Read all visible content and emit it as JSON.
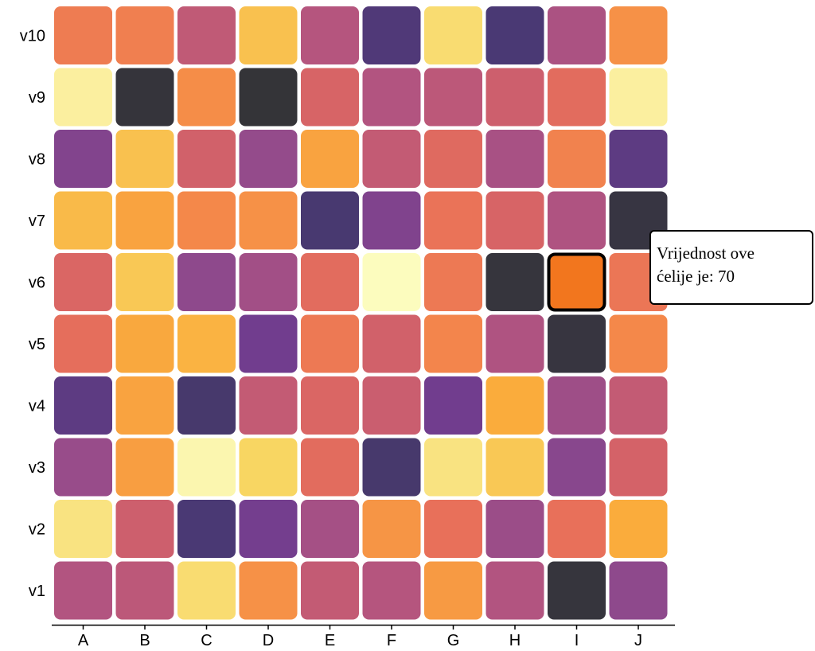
{
  "chart_data": {
    "type": "heatmap",
    "x_categories": [
      "A",
      "B",
      "C",
      "D",
      "E",
      "F",
      "G",
      "H",
      "I",
      "J"
    ],
    "y_categories": [
      "v1",
      "v2",
      "v3",
      "v4",
      "v5",
      "v6",
      "v7",
      "v8",
      "v9",
      "v10"
    ],
    "color_scale": "inferno",
    "values": [
      [
        55,
        58,
        95,
        82,
        60,
        56,
        84,
        55,
        4,
        44
      ],
      [
        96,
        63,
        20,
        35,
        51,
        83,
        72,
        48,
        72,
        88
      ],
      [
        47,
        85,
        99,
        94,
        70,
        18,
        96,
        92,
        42,
        65
      ],
      [
        27,
        86,
        18,
        60,
        67,
        62,
        34,
        88,
        49,
        60
      ],
      [
        71,
        87,
        89,
        34,
        75,
        64,
        79,
        54,
        5,
        80
      ],
      [
        67,
        92,
        44,
        50,
        70,
        100,
        75,
        4,
        70,
        74
      ],
      [
        90,
        86,
        80,
        82,
        19,
        39,
        73,
        66,
        54,
        6
      ],
      [
        40,
        91,
        64,
        46,
        86,
        60,
        69,
        52,
        78,
        27
      ],
      [
        98,
        3,
        81,
        2,
        66,
        55,
        58,
        63,
        70,
        98
      ],
      [
        76,
        77,
        59,
        91,
        56,
        22,
        95,
        20,
        53,
        82
      ]
    ],
    "highlighted_cell": {
      "x": "I",
      "y": "v6",
      "value": 70,
      "color": "#f2761e"
    },
    "tooltip": {
      "line1": "Vrijednost ove",
      "line2": "ćelije je: 70"
    },
    "xlabel": "",
    "ylabel": "",
    "grid": false,
    "colors": {
      "highlight_border": "#000000",
      "axis_line": "#000000"
    }
  }
}
